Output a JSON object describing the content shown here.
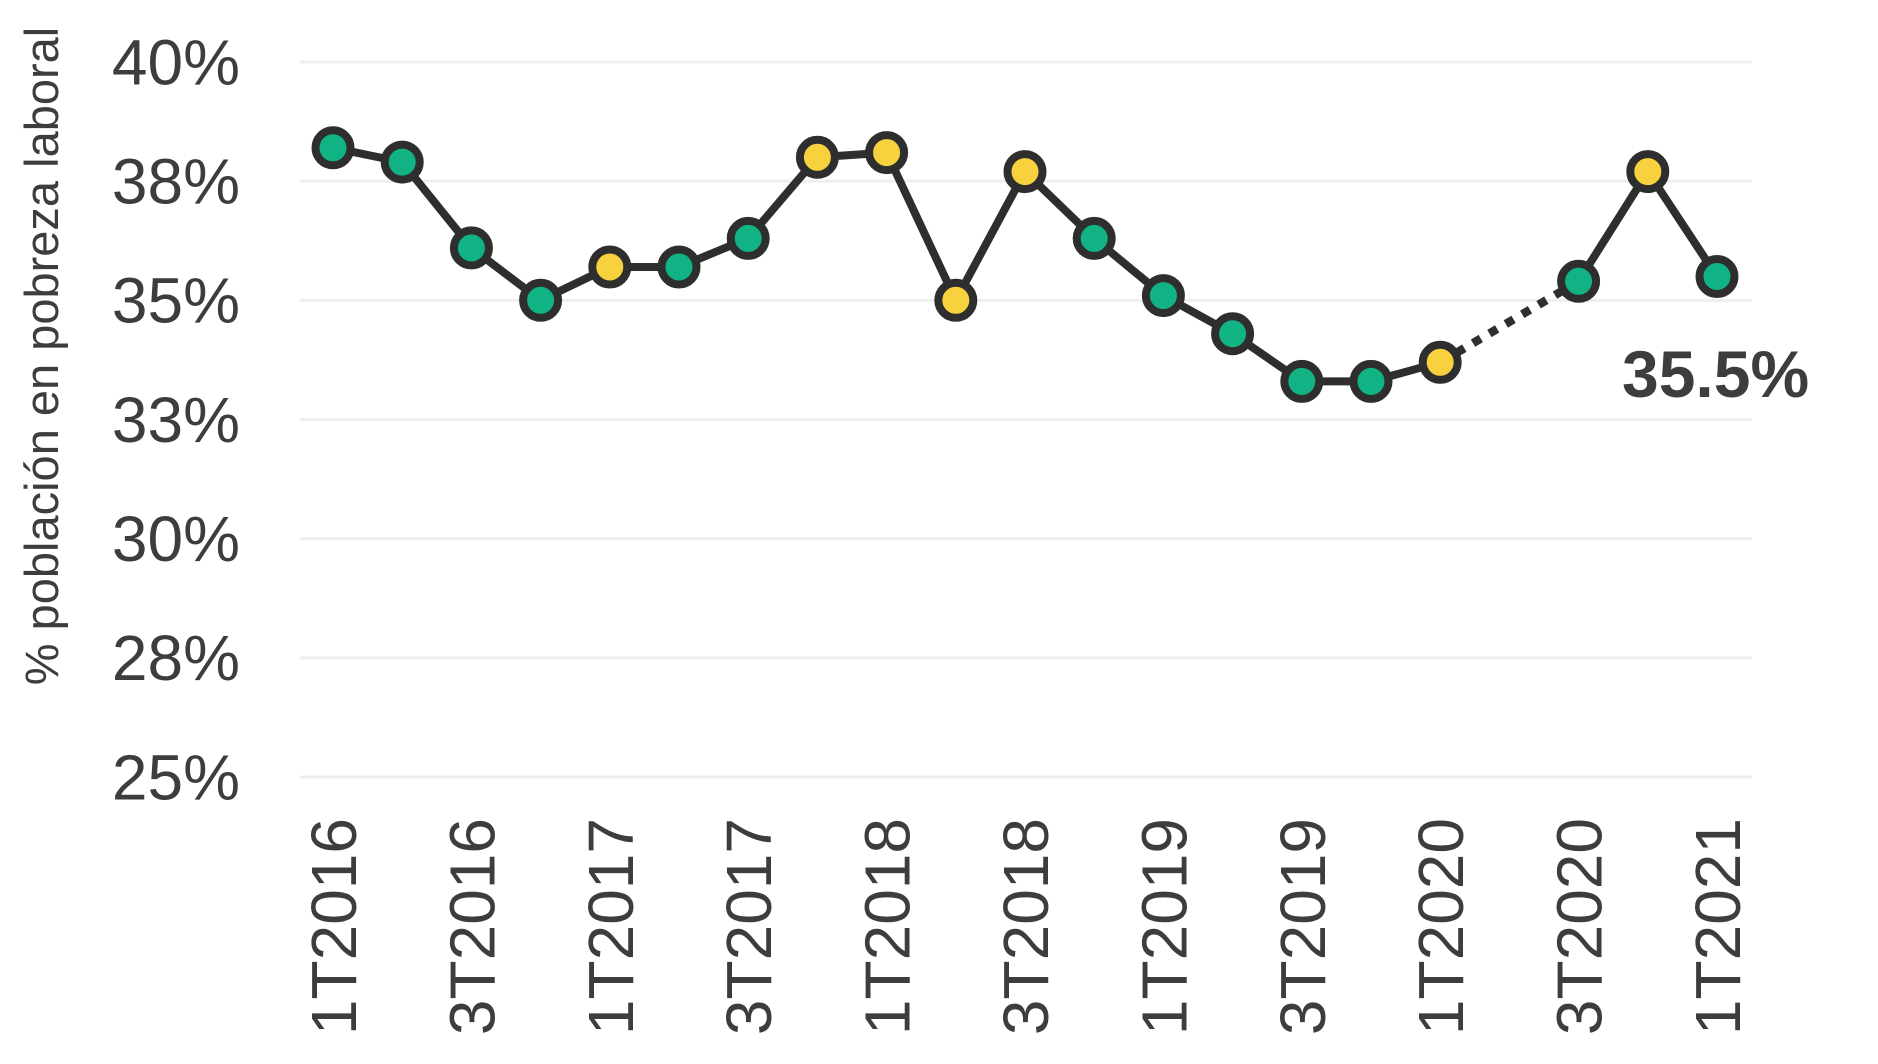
{
  "chart_data": {
    "type": "line",
    "title": "",
    "ylabel": "% población en pobreza laboral",
    "xlabel": "",
    "categories": [
      "1T2016",
      "2T2016",
      "3T2016",
      "4T2016",
      "1T2017",
      "2T2017",
      "3T2017",
      "4T2017",
      "1T2018",
      "2T2018",
      "3T2018",
      "4T2018",
      "1T2019",
      "2T2019",
      "3T2019",
      "4T2019",
      "1T2020",
      "2T2020",
      "3T2020",
      "4T2020",
      "1T2021"
    ],
    "series": [
      {
        "name": "% población en pobreza laboral",
        "values": [
          38.2,
          37.9,
          36.1,
          35.0,
          35.7,
          35.7,
          36.3,
          38.0,
          38.1,
          35.0,
          37.7,
          36.3,
          35.1,
          34.3,
          33.3,
          33.3,
          33.7,
          null,
          35.4,
          37.7,
          35.5
        ]
      }
    ],
    "point_colors": [
      "green",
      "green",
      "green",
      "green",
      "yellow",
      "green",
      "green",
      "yellow",
      "yellow",
      "yellow",
      "yellow",
      "green",
      "green",
      "green",
      "green",
      "green",
      "yellow",
      null,
      "green",
      "yellow",
      "green"
    ],
    "missing_point": "2T2020",
    "gap_connector_style": "dotted",
    "y_ticks": [
      {
        "label": "40%",
        "value": 40
      },
      {
        "label": "38%",
        "value": 37.5
      },
      {
        "label": "35%",
        "value": 35
      },
      {
        "label": "33%",
        "value": 32.5
      },
      {
        "label": "30%",
        "value": 30
      },
      {
        "label": "28%",
        "value": 27.5
      },
      {
        "label": "25%",
        "value": 25
      }
    ],
    "x_tick_labels": [
      "1T2016",
      "3T2016",
      "1T2017",
      "3T2017",
      "1T2018",
      "3T2018",
      "1T2019",
      "3T2019",
      "1T2020",
      "3T2020",
      "1T2021"
    ],
    "x_tick_every": 2,
    "ylim": [
      25,
      40
    ],
    "grid": "horizontal",
    "legend": "none",
    "annotation": {
      "text": "35.5%",
      "target": "1T2021"
    }
  },
  "colors": {
    "green_marker": "#11B385",
    "yellow_marker": "#F8D13E",
    "line": "#2E2E2E",
    "grid": "#EFEFEF",
    "text": "#3D3D3D",
    "background": "#FFFFFF"
  }
}
